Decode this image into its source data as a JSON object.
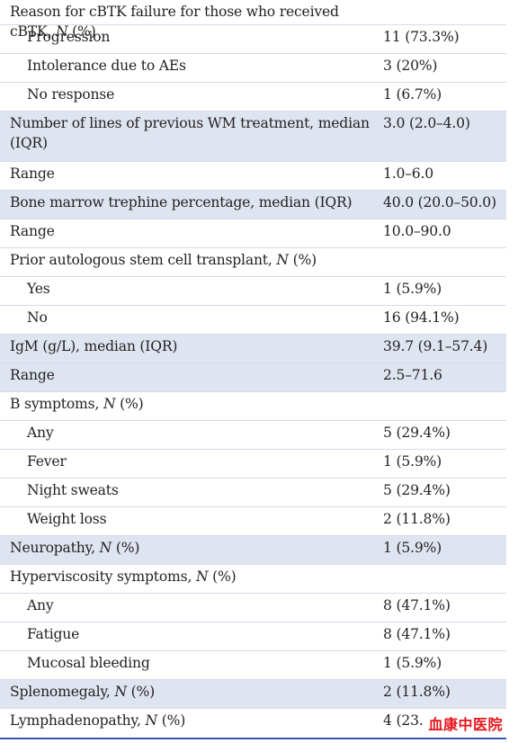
{
  "rows": [
    {
      "label": "Reason for cBTK failure for those who received cBTK, ",
      "suffix": "N",
      "tail": " (%)",
      "value": "",
      "indent": false,
      "shade": false
    },
    {
      "label": "Progression",
      "value": "11 (73.3%)",
      "indent": true,
      "shade": false
    },
    {
      "label": "Intolerance due to AEs",
      "value": "3 (20%)",
      "indent": true,
      "shade": false
    },
    {
      "label": "No response",
      "value": "1 (6.7%)",
      "indent": true,
      "shade": false
    },
    {
      "label": "Number of lines of previous WM treatment, median (IQR)",
      "value": "3.0 (2.0–4.0)",
      "indent": false,
      "shade": true
    },
    {
      "label": "Range",
      "value": "1.0–6.0",
      "indent": false,
      "shade": false
    },
    {
      "label": "Bone marrow trephine percentage, median (IQR)",
      "value": "40.0 (20.0–50.0)",
      "indent": false,
      "shade": true
    },
    {
      "label": "Range",
      "value": "10.0–90.0",
      "indent": false,
      "shade": false
    },
    {
      "label": "Prior autologous stem cell transplant, ",
      "suffix": "N",
      "tail": " (%)",
      "value": "",
      "indent": false,
      "shade": false
    },
    {
      "label": "Yes",
      "value": "1 (5.9%)",
      "indent": true,
      "shade": false
    },
    {
      "label": "No",
      "value": "16 (94.1%)",
      "indent": true,
      "shade": false
    },
    {
      "label": "IgM (g/L), median (IQR)",
      "value": "39.7 (9.1–57.4)",
      "indent": false,
      "shade": true
    },
    {
      "label": "Range",
      "value": "2.5–71.6",
      "indent": false,
      "shade": true
    },
    {
      "label": "B symptoms, ",
      "suffix": "N",
      "tail": " (%)",
      "value": "",
      "indent": false,
      "shade": false
    },
    {
      "label": "Any",
      "value": "5 (29.4%)",
      "indent": true,
      "shade": false
    },
    {
      "label": "Fever",
      "value": "1 (5.9%)",
      "indent": true,
      "shade": false
    },
    {
      "label": "Night sweats",
      "value": "5 (29.4%)",
      "indent": true,
      "shade": false
    },
    {
      "label": "Weight loss",
      "value": "2 (11.8%)",
      "indent": true,
      "shade": false
    },
    {
      "label": "Neuropathy, ",
      "suffix": "N",
      "tail": " (%)",
      "value": "1 (5.9%)",
      "indent": false,
      "shade": true
    },
    {
      "label": "Hyperviscosity symptoms, ",
      "suffix": "N",
      "tail": " (%)",
      "value": "",
      "indent": false,
      "shade": false
    },
    {
      "label": "Any",
      "value": "8 (47.1%)",
      "indent": true,
      "shade": false
    },
    {
      "label": "Fatigue",
      "value": "8 (47.1%)",
      "indent": true,
      "shade": false
    },
    {
      "label": "Mucosal bleeding",
      "value": "1 (5.9%)",
      "indent": true,
      "shade": false
    },
    {
      "label": "Splenomegaly, ",
      "suffix": "N",
      "tail": " (%)",
      "value": "2 (11.8%)",
      "indent": false,
      "shade": true
    },
    {
      "label": "Lymphadenopathy, ",
      "suffix": "N",
      "tail": " (%)",
      "value": "4 (23.",
      "indent": false,
      "shade": false
    }
  ],
  "watermark": "血康中医院",
  "colors": {
    "shade": "#dfe5f0",
    "rule": "#2e5aa6",
    "watermark": "#e8141c"
  }
}
